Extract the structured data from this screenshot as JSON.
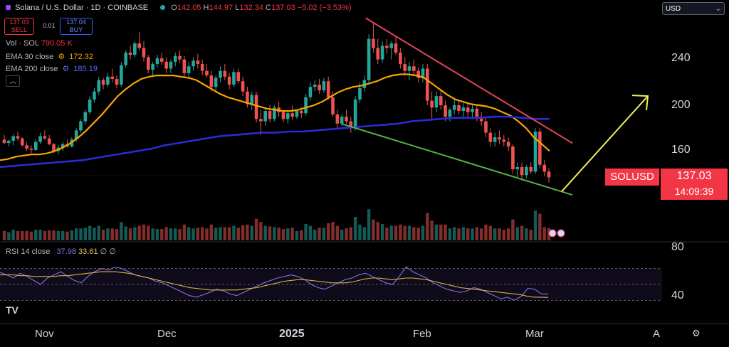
{
  "header": {
    "symbol_title": "Solana / U.S. Dollar · 1D · COINBASE",
    "open_label": "O",
    "open": "142.05",
    "high_label": "H",
    "high": "144.97",
    "low_label": "L",
    "low": "132.34",
    "close_label": "C",
    "close": "137.03",
    "change": "−5.02 (−3.53%)"
  },
  "trade": {
    "sell_price": "137.03",
    "sell_label": "SELL",
    "spread": "0.01",
    "buy_price": "137.04",
    "buy_label": "BUY"
  },
  "indicators": {
    "vol_label": "Vol · SOL",
    "vol_value": "790.05 K",
    "ema30_label": "EMA 30 close",
    "ema30_value": "172.32",
    "ema200_label": "EMA 200 close",
    "ema200_value": "185.19"
  },
  "rsi": {
    "label": "RSI 14 close",
    "value1": "37.98",
    "value2": "33.61",
    "sym": "∅  ∅"
  },
  "currency_select": "USD",
  "price_tag": {
    "symbol": "SOLUSD",
    "price": "137.03",
    "countdown": "14:09:39"
  },
  "colors": {
    "up": "#26a69a",
    "down": "#ef5350",
    "ema30": "#f7a600",
    "ema200": "#2b2bd6",
    "resistance": "#e0435a",
    "support": "#58b04a",
    "arrow": "#f0ee5a",
    "rsi": "#8b6ce8",
    "rsi_ma": "#d5b347"
  },
  "chart_data": [
    {
      "type": "candlestick",
      "title": "Solana / U.S. Dollar · 1D · COINBASE",
      "ylim": [
        128,
        268
      ],
      "yticks": [
        240,
        200,
        160
      ],
      "x_labels": [
        "Nov",
        "Dec",
        "2025",
        "Feb",
        "Mar",
        "A"
      ],
      "series_names": [
        "EMA 30 close",
        "EMA 200 close"
      ],
      "ohlc": [
        [
          170,
          174,
          166,
          167
        ],
        [
          167,
          170,
          164,
          169
        ],
        [
          169,
          175,
          165,
          173
        ],
        [
          173,
          177,
          169,
          171
        ],
        [
          171,
          172,
          164,
          165
        ],
        [
          165,
          168,
          160,
          162
        ],
        [
          162,
          165,
          158,
          161
        ],
        [
          161,
          170,
          160,
          168
        ],
        [
          168,
          176,
          166,
          173
        ],
        [
          173,
          178,
          170,
          171
        ],
        [
          171,
          174,
          165,
          166
        ],
        [
          166,
          167,
          158,
          160
        ],
        [
          160,
          165,
          157,
          163
        ],
        [
          163,
          168,
          160,
          166
        ],
        [
          166,
          170,
          163,
          164
        ],
        [
          164,
          172,
          163,
          170
        ],
        [
          170,
          180,
          168,
          178
        ],
        [
          178,
          188,
          176,
          186
        ],
        [
          186,
          196,
          183,
          194
        ],
        [
          194,
          208,
          192,
          205
        ],
        [
          205,
          215,
          202,
          212
        ],
        [
          212,
          225,
          209,
          222
        ],
        [
          222,
          224,
          214,
          218
        ],
        [
          218,
          228,
          216,
          225
        ],
        [
          225,
          232,
          220,
          223
        ],
        [
          223,
          226,
          215,
          218
        ],
        [
          218,
          238,
          216,
          235
        ],
        [
          235,
          248,
          233,
          246
        ],
        [
          246,
          252,
          240,
          244
        ],
        [
          244,
          256,
          242,
          254
        ],
        [
          254,
          264,
          248,
          250
        ],
        [
          250,
          256,
          238,
          242
        ],
        [
          242,
          244,
          228,
          231
        ],
        [
          231,
          238,
          226,
          236
        ],
        [
          236,
          244,
          233,
          241
        ],
        [
          241,
          246,
          235,
          238
        ],
        [
          238,
          242,
          228,
          232
        ],
        [
          232,
          240,
          228,
          238
        ],
        [
          238,
          246,
          234,
          243
        ],
        [
          243,
          248,
          237,
          240
        ],
        [
          240,
          243,
          225,
          228
        ],
        [
          228,
          238,
          224,
          234
        ],
        [
          234,
          242,
          230,
          239
        ],
        [
          239,
          245,
          232,
          236
        ],
        [
          236,
          240,
          226,
          230
        ],
        [
          230,
          236,
          224,
          226
        ],
        [
          226,
          230,
          212,
          216
        ],
        [
          216,
          226,
          213,
          224
        ],
        [
          224,
          234,
          220,
          230
        ],
        [
          230,
          236,
          222,
          225
        ],
        [
          225,
          228,
          214,
          218
        ],
        [
          218,
          232,
          216,
          229
        ],
        [
          229,
          232,
          219,
          221
        ],
        [
          221,
          225,
          208,
          212
        ],
        [
          212,
          216,
          198,
          201
        ],
        [
          201,
          212,
          196,
          209
        ],
        [
          209,
          212,
          185,
          188
        ],
        [
          188,
          196,
          174,
          186
        ],
        [
          186,
          198,
          182,
          195
        ],
        [
          195,
          200,
          185,
          188
        ],
        [
          188,
          200,
          186,
          198
        ],
        [
          198,
          203,
          190,
          194
        ],
        [
          194,
          196,
          185,
          188
        ],
        [
          188,
          196,
          184,
          193
        ],
        [
          193,
          200,
          187,
          190
        ],
        [
          190,
          196,
          188,
          195
        ],
        [
          195,
          198,
          189,
          193
        ],
        [
          193,
          210,
          191,
          207
        ],
        [
          207,
          220,
          204,
          216
        ],
        [
          216,
          222,
          212,
          218
        ],
        [
          218,
          223,
          210,
          213
        ],
        [
          213,
          224,
          211,
          221
        ],
        [
          221,
          225,
          205,
          207
        ],
        [
          207,
          212,
          190,
          192
        ],
        [
          192,
          196,
          180,
          184
        ],
        [
          184,
          192,
          182,
          190
        ],
        [
          190,
          196,
          184,
          186
        ],
        [
          186,
          190,
          176,
          180
        ],
        [
          180,
          208,
          178,
          205
        ],
        [
          205,
          220,
          202,
          215
        ],
        [
          215,
          226,
          212,
          222
        ],
        [
          222,
          262,
          220,
          258
        ],
        [
          258,
          272,
          246,
          250
        ],
        [
          250,
          258,
          236,
          240
        ],
        [
          240,
          256,
          237,
          252
        ],
        [
          252,
          258,
          245,
          250
        ],
        [
          250,
          256,
          240,
          254
        ],
        [
          254,
          260,
          244,
          246
        ],
        [
          246,
          250,
          232,
          236
        ],
        [
          236,
          242,
          226,
          230
        ],
        [
          230,
          238,
          222,
          234
        ],
        [
          234,
          240,
          226,
          230
        ],
        [
          230,
          233,
          220,
          224
        ],
        [
          224,
          236,
          220,
          232
        ],
        [
          232,
          236,
          200,
          204
        ],
        [
          204,
          212,
          188,
          198
        ],
        [
          198,
          212,
          194,
          208
        ],
        [
          208,
          214,
          196,
          200
        ],
        [
          200,
          204,
          186,
          190
        ],
        [
          190,
          198,
          186,
          196
        ],
        [
          196,
          206,
          192,
          200
        ],
        [
          200,
          204,
          192,
          195
        ],
        [
          195,
          202,
          188,
          198
        ],
        [
          198,
          202,
          190,
          194
        ],
        [
          194,
          200,
          188,
          197
        ],
        [
          197,
          200,
          186,
          190
        ],
        [
          190,
          194,
          182,
          186
        ],
        [
          186,
          190,
          172,
          176
        ],
        [
          176,
          180,
          164,
          168
        ],
        [
          168,
          176,
          164,
          172
        ],
        [
          172,
          178,
          166,
          170
        ],
        [
          170,
          174,
          164,
          168
        ],
        [
          168,
          172,
          160,
          164
        ],
        [
          164,
          166,
          140,
          144
        ],
        [
          144,
          150,
          136,
          146
        ],
        [
          146,
          150,
          134,
          139
        ],
        [
          139,
          148,
          136,
          146
        ],
        [
          146,
          150,
          140,
          142
        ],
        [
          142,
          180,
          140,
          177
        ],
        [
          177,
          180,
          145,
          148
        ],
        [
          148,
          152,
          138,
          142
        ],
        [
          142.05,
          144.97,
          132.34,
          137.03
        ]
      ],
      "ema30": [
        152,
        153,
        155,
        156,
        157,
        157,
        158,
        160,
        163,
        167,
        172,
        178,
        185,
        192,
        200,
        208,
        214,
        219,
        223,
        225,
        226,
        226,
        226,
        225,
        224,
        222,
        218,
        214,
        210,
        207,
        205,
        203,
        201,
        199,
        197,
        196,
        195,
        195,
        196,
        198,
        200,
        203,
        207,
        211,
        214,
        216,
        217,
        219,
        221,
        224,
        226,
        227,
        227,
        226,
        224,
        219,
        214,
        209,
        205,
        203,
        201,
        200,
        199,
        197,
        194,
        191,
        186,
        180,
        172,
        166,
        160
      ],
      "ema200": [
        146,
        147,
        148,
        149,
        150,
        151,
        152,
        154,
        156,
        158,
        160,
        162,
        165,
        167,
        169,
        171,
        173,
        174,
        175,
        176,
        176,
        177,
        177,
        178,
        179,
        180,
        181,
        182,
        183,
        184,
        186,
        187,
        188,
        189,
        189,
        189,
        190,
        190,
        189,
        188,
        188
      ],
      "trendlines": [
        {
          "name": "resistance",
          "from": [
            0.5016,
            0.052
          ],
          "to": [
            0.7852,
            0.4126
          ]
        },
        {
          "name": "support",
          "from": [
            0.4688,
            0.3569
          ],
          "to": [
            0.7851,
            0.5616
          ]
        },
        {
          "name": "projection",
          "from": [
            0.7705,
            0.5519
          ],
          "to": [
            0.8887,
            0.2768
          ]
        }
      ]
    },
    {
      "type": "line",
      "title": "RSI 14 close",
      "ylim": [
        20,
        85
      ],
      "yticks": [
        80,
        40
      ],
      "bands": [
        70,
        50,
        30
      ],
      "series": [
        {
          "name": "RSI",
          "values": [
            65,
            62,
            58,
            64,
            60,
            55,
            50,
            58,
            62,
            66,
            60,
            55,
            52,
            60,
            66,
            70,
            68,
            72,
            70,
            66,
            62,
            60,
            58,
            54,
            52,
            48,
            44,
            40,
            36,
            34,
            37,
            40,
            44,
            42,
            38,
            36,
            40,
            44,
            48,
            52,
            55,
            58,
            60,
            62,
            60,
            56,
            50,
            46,
            44,
            48,
            52,
            56,
            58,
            62,
            64,
            60,
            56,
            52,
            50,
            60,
            72,
            66,
            62,
            58,
            52,
            48,
            44,
            42,
            40,
            42,
            46,
            44,
            40,
            36,
            32,
            34,
            30,
            35,
            45,
            44,
            38,
            38
          ]
        },
        {
          "name": "RSI MA",
          "values": [
            62,
            62,
            62,
            61,
            61,
            60,
            60,
            60,
            60,
            61,
            61,
            62,
            63,
            64,
            65,
            66,
            66,
            66,
            65,
            64,
            62,
            60,
            58,
            56,
            54,
            52,
            50,
            48,
            46,
            45,
            44,
            43,
            43,
            43,
            43,
            43,
            44,
            45,
            46,
            48,
            50,
            52,
            54,
            55,
            56,
            56,
            55,
            54,
            53,
            52,
            52,
            52,
            53,
            55,
            57,
            58,
            58,
            57,
            56,
            57,
            58,
            58,
            57,
            56,
            54,
            52,
            50,
            48,
            46,
            45,
            44,
            43,
            42,
            41,
            40,
            39,
            38,
            37,
            35,
            34,
            34,
            33.6
          ]
        }
      ]
    }
  ]
}
